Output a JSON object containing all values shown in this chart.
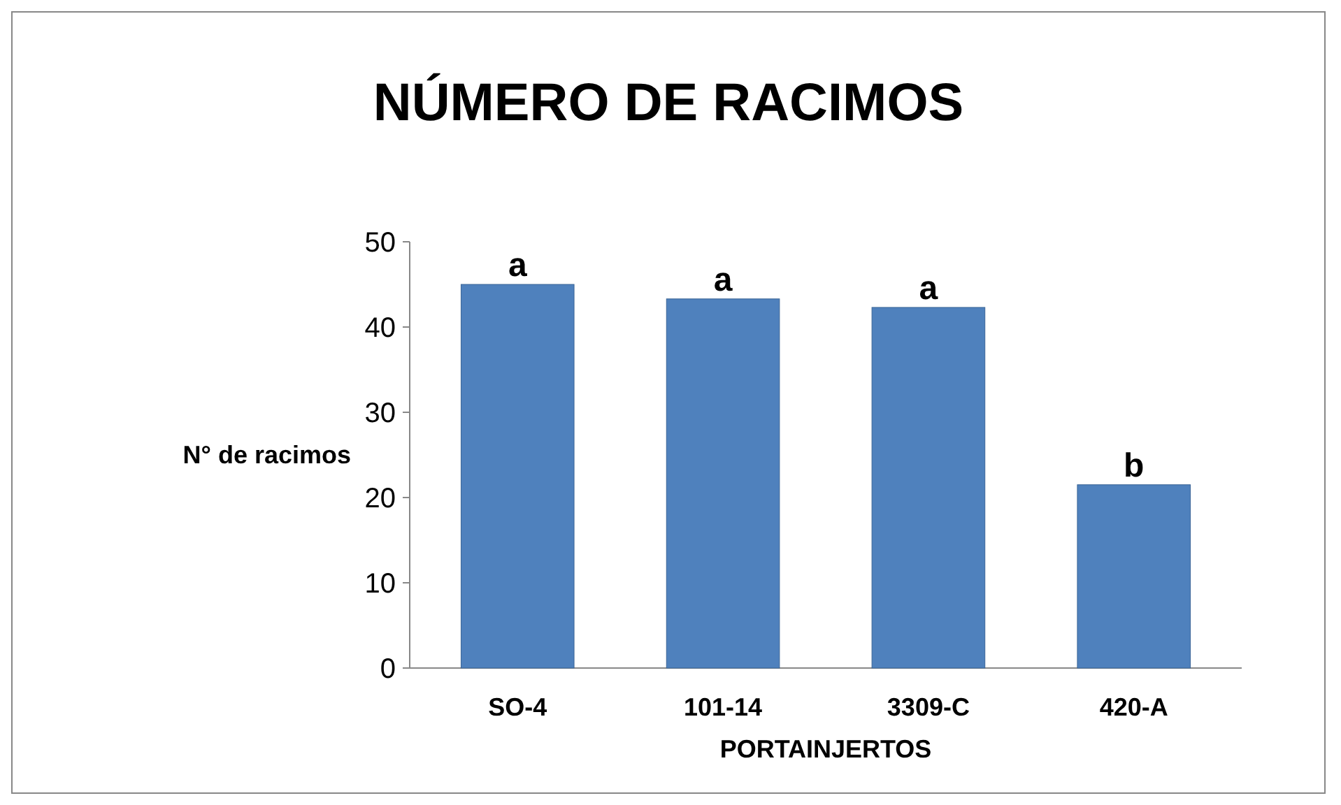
{
  "chart_data": {
    "type": "bar",
    "title": "NÚMERO DE RACIMOS",
    "xlabel": "PORTAINJERTOS",
    "ylabel": "N° de racimos",
    "categories": [
      "SO-4",
      "101-14",
      "3309-C",
      "420-A"
    ],
    "values": [
      45,
      43.3,
      42.3,
      21.5
    ],
    "value_labels": [
      "a",
      "a",
      "a",
      "b"
    ],
    "color": "#4f81bd",
    "ylim": [
      0,
      50
    ],
    "yticks": [
      0,
      10,
      20,
      30,
      40,
      50
    ],
    "grid": false
  }
}
